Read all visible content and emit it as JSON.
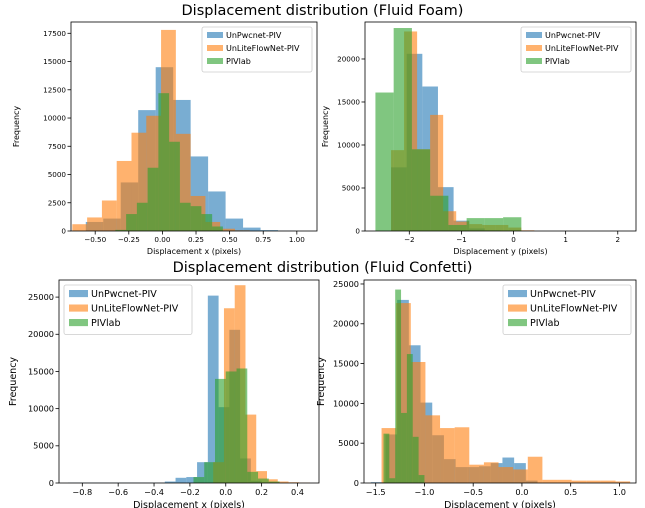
{
  "figure": {
    "top_title": "Displacement distribution (Fluid Foam)",
    "bottom_title": "Displacement distribution (Fluid Confetti)"
  },
  "colors": {
    "UnPwcnet-PIV": "#1f77b4",
    "UnLiteFlowNet-PIV": "#ff7f0e",
    "PIVlab": "#2ca02c",
    "alpha": 0.6
  },
  "chart_data": [
    {
      "type": "bar",
      "panel": "foam-x",
      "xlabel": "Displacement x (pixels)",
      "ylabel": "Frequency",
      "xlim": [
        -0.68,
        1.15
      ],
      "ylim": [
        0,
        18500
      ],
      "xticks": [
        -0.5,
        -0.25,
        0.0,
        0.25,
        0.5,
        0.75,
        1.0
      ],
      "xticklabels": [
        "−0.50",
        "−0.25",
        "0.00",
        "0.25",
        "0.50",
        "0.75",
        "1.00"
      ],
      "yticks": [
        0,
        2500,
        5000,
        7500,
        10000,
        12500,
        15000,
        17500
      ],
      "yticklabels": [
        "0",
        "2500",
        "5000",
        "7500",
        "10000",
        "12500",
        "15000",
        "17500"
      ],
      "legend": "top-right",
      "series": [
        {
          "name": "UnPwcnet-PIV",
          "bins": [
            [
              -0.57,
              -0.44,
              800
            ],
            [
              -0.44,
              -0.31,
              1100
            ],
            [
              -0.31,
              -0.18,
              4300
            ],
            [
              -0.18,
              -0.05,
              10700
            ],
            [
              -0.05,
              0.08,
              14500
            ],
            [
              0.08,
              0.21,
              11600
            ],
            [
              0.21,
              0.34,
              6600
            ],
            [
              0.34,
              0.47,
              3500
            ],
            [
              0.47,
              0.6,
              1100
            ],
            [
              0.6,
              0.73,
              300
            ],
            [
              0.73,
              0.86,
              80
            ],
            [
              0.86,
              0.99,
              25
            ]
          ]
        },
        {
          "name": "UnLiteFlowNet-PIV",
          "bins": [
            [
              -0.67,
              -0.56,
              600
            ],
            [
              -0.56,
              -0.45,
              1200
            ],
            [
              -0.45,
              -0.34,
              2700
            ],
            [
              -0.34,
              -0.23,
              6200
            ],
            [
              -0.23,
              -0.12,
              8700
            ],
            [
              -0.12,
              -0.01,
              10200
            ],
            [
              -0.01,
              0.1,
              17800
            ],
            [
              0.1,
              0.21,
              8600
            ],
            [
              0.21,
              0.32,
              3100
            ],
            [
              0.32,
              0.43,
              800
            ],
            [
              0.43,
              0.54,
              200
            ],
            [
              0.54,
              0.65,
              60
            ]
          ]
        },
        {
          "name": "PIVlab",
          "bins": [
            [
              -0.35,
              -0.27,
              100
            ],
            [
              -0.27,
              -0.19,
              1500
            ],
            [
              -0.19,
              -0.11,
              2500
            ],
            [
              -0.11,
              -0.03,
              5600
            ],
            [
              -0.03,
              0.05,
              12200
            ],
            [
              0.05,
              0.13,
              7900
            ],
            [
              0.13,
              0.21,
              2500
            ],
            [
              0.21,
              0.29,
              2200
            ],
            [
              0.29,
              0.37,
              1500
            ],
            [
              0.37,
              0.45,
              400
            ]
          ]
        }
      ]
    },
    {
      "type": "bar",
      "panel": "foam-y",
      "xlabel": "Displacement y (pixels)",
      "ylabel": "Frequency",
      "xlim": [
        -2.85,
        2.35
      ],
      "ylim": [
        0,
        24300
      ],
      "xticks": [
        -2,
        -1,
        0,
        1,
        2
      ],
      "xticklabels": [
        "−2",
        "−1",
        "0",
        "1",
        "2"
      ],
      "yticks": [
        0,
        5000,
        10000,
        15000,
        20000
      ],
      "yticklabels": [
        "0",
        "5000",
        "10000",
        "15000",
        "20000"
      ],
      "legend": "top-right",
      "series": [
        {
          "name": "UnPwcnet-PIV",
          "bins": [
            [
              -2.35,
              -2.05,
              7400
            ],
            [
              -2.05,
              -1.75,
              20600
            ],
            [
              -1.75,
              -1.45,
              16800
            ],
            [
              -1.45,
              -1.15,
              5100
            ],
            [
              -1.15,
              -0.85,
              1200
            ],
            [
              -0.85,
              -0.55,
              300
            ],
            [
              -0.55,
              -0.25,
              80
            ],
            [
              -0.25,
              0.05,
              20
            ]
          ]
        },
        {
          "name": "UnLiteFlowNet-PIV",
          "bins": [
            [
              -2.35,
              -2.1,
              9400
            ],
            [
              -2.1,
              -1.85,
              23200
            ],
            [
              -1.85,
              -1.6,
              9500
            ],
            [
              -1.6,
              -1.35,
              13500
            ],
            [
              -1.35,
              -1.1,
              2300
            ],
            [
              -1.1,
              -0.85,
              1100
            ],
            [
              -0.85,
              -0.6,
              800
            ],
            [
              -0.6,
              -0.35,
              700
            ],
            [
              -0.35,
              -0.1,
              700
            ],
            [
              -0.1,
              0.15,
              400
            ],
            [
              0.15,
              0.4,
              80
            ]
          ]
        },
        {
          "name": "PIVlab",
          "bins": [
            [
              -2.65,
              -2.3,
              16100
            ],
            [
              -2.3,
              -1.95,
              23600
            ],
            [
              -1.95,
              -1.6,
              9500
            ],
            [
              -1.6,
              -1.25,
              4100
            ],
            [
              -1.25,
              -0.9,
              700
            ],
            [
              -0.9,
              -0.55,
              1500
            ],
            [
              -0.55,
              -0.2,
              1500
            ],
            [
              -0.2,
              0.15,
              1600
            ]
          ]
        }
      ]
    },
    {
      "type": "bar",
      "panel": "confetti-x",
      "xlabel": "Displacement x (pixels)",
      "ylabel": "Frequency",
      "xlim": [
        -0.93,
        0.52
      ],
      "ylim": [
        0,
        27300
      ],
      "xticks": [
        -0.8,
        -0.6,
        -0.4,
        -0.2,
        0.0,
        0.2,
        0.4
      ],
      "xticklabels": [
        "−0.8",
        "−0.6",
        "−0.4",
        "−0.2",
        "0.0",
        "0.2",
        "0.4"
      ],
      "yticks": [
        0,
        5000,
        10000,
        15000,
        20000,
        25000
      ],
      "yticklabels": [
        "0",
        "5000",
        "10000",
        "15000",
        "20000",
        "25000"
      ],
      "legend": "top-left",
      "series": [
        {
          "name": "UnPwcnet-PIV",
          "bins": [
            [
              -0.88,
              -0.34,
              40
            ],
            [
              -0.34,
              -0.28,
              200
            ],
            [
              -0.28,
              -0.22,
              700
            ],
            [
              -0.22,
              -0.16,
              800
            ],
            [
              -0.16,
              -0.1,
              2800
            ],
            [
              -0.1,
              -0.04,
              25200
            ],
            [
              -0.04,
              0.02,
              10200
            ],
            [
              0.02,
              0.08,
              20600
            ],
            [
              0.08,
              0.14,
              3300
            ],
            [
              0.14,
              0.2,
              300
            ],
            [
              0.2,
              0.26,
              60
            ]
          ]
        },
        {
          "name": "UnLiteFlowNet-PIV",
          "bins": [
            [
              -0.07,
              -0.01,
              2800
            ],
            [
              -0.01,
              0.05,
              23500
            ],
            [
              0.05,
              0.11,
              26600
            ],
            [
              0.11,
              0.17,
              9200
            ],
            [
              0.17,
              0.23,
              1600
            ],
            [
              0.23,
              0.29,
              500
            ],
            [
              0.29,
              0.35,
              200
            ],
            [
              0.35,
              0.41,
              100
            ],
            [
              0.41,
              0.47,
              40
            ]
          ]
        },
        {
          "name": "PIVlab",
          "bins": [
            [
              -0.18,
              -0.12,
              800
            ],
            [
              -0.12,
              -0.06,
              2800
            ],
            [
              -0.06,
              0.0,
              14000
            ],
            [
              0.0,
              0.06,
              15000
            ],
            [
              0.06,
              0.12,
              15400
            ],
            [
              0.12,
              0.18,
              1500
            ],
            [
              0.18,
              0.24,
              600
            ],
            [
              0.24,
              0.3,
              200
            ]
          ]
        }
      ]
    },
    {
      "type": "bar",
      "panel": "confetti-y",
      "xlabel": "Displacement y (pixels)",
      "ylabel": "Frequency",
      "xlim": [
        -1.62,
        1.17
      ],
      "ylim": [
        0,
        25500
      ],
      "xticks": [
        -1.5,
        -1.0,
        -0.5,
        0.0,
        0.5,
        1.0
      ],
      "xticklabels": [
        "−1.5",
        "−1.0",
        "−0.5",
        "0.0",
        "0.5",
        "1.0"
      ],
      "yticks": [
        0,
        5000,
        10000,
        15000,
        20000,
        25000
      ],
      "yticklabels": [
        "0",
        "5000",
        "10000",
        "15000",
        "20000",
        "25000"
      ],
      "legend": "top-right",
      "series": [
        {
          "name": "UnPwcnet-PIV",
          "bins": [
            [
              -1.55,
              -1.4,
              100
            ],
            [
              -1.4,
              -1.28,
              6100
            ],
            [
              -1.28,
              -1.16,
              23000
            ],
            [
              -1.16,
              -1.04,
              17300
            ],
            [
              -1.04,
              -0.92,
              10100
            ],
            [
              -0.92,
              -0.8,
              6000
            ],
            [
              -0.8,
              -0.68,
              3000
            ],
            [
              -0.68,
              -0.56,
              2000
            ],
            [
              -0.56,
              -0.44,
              2000
            ],
            [
              -0.44,
              -0.32,
              2100
            ],
            [
              -0.32,
              -0.2,
              2500
            ],
            [
              -0.2,
              -0.08,
              3200
            ],
            [
              -0.08,
              0.04,
              2500
            ],
            [
              0.04,
              0.16,
              300
            ]
          ]
        },
        {
          "name": "UnLiteFlowNet-PIV",
          "bins": [
            [
              -1.44,
              -1.29,
              6900
            ],
            [
              -1.29,
              -1.14,
              22600
            ],
            [
              -1.14,
              -0.99,
              15200
            ],
            [
              -0.99,
              -0.84,
              8500
            ],
            [
              -0.84,
              -0.69,
              6900
            ],
            [
              -0.69,
              -0.54,
              7000
            ],
            [
              -0.54,
              -0.39,
              2300
            ],
            [
              -0.39,
              -0.24,
              2600
            ],
            [
              -0.24,
              -0.09,
              2000
            ],
            [
              -0.09,
              0.06,
              1700
            ],
            [
              0.06,
              0.21,
              3300
            ],
            [
              0.21,
              0.36,
              400
            ],
            [
              0.36,
              0.51,
              400
            ],
            [
              0.51,
              0.66,
              300
            ],
            [
              0.66,
              0.81,
              300
            ],
            [
              0.81,
              0.96,
              300
            ],
            [
              0.96,
              1.11,
              200
            ]
          ]
        },
        {
          "name": "PIVlab",
          "bins": [
            [
              -1.42,
              -1.36,
              6200
            ],
            [
              -1.36,
              -1.3,
              600
            ],
            [
              -1.3,
              -1.24,
              24300
            ],
            [
              -1.24,
              -1.18,
              8800
            ],
            [
              -1.18,
              -1.12,
              16200
            ],
            [
              -1.12,
              -1.06,
              5800
            ],
            [
              -1.06,
              -1.0,
              1000
            ]
          ]
        }
      ]
    }
  ]
}
